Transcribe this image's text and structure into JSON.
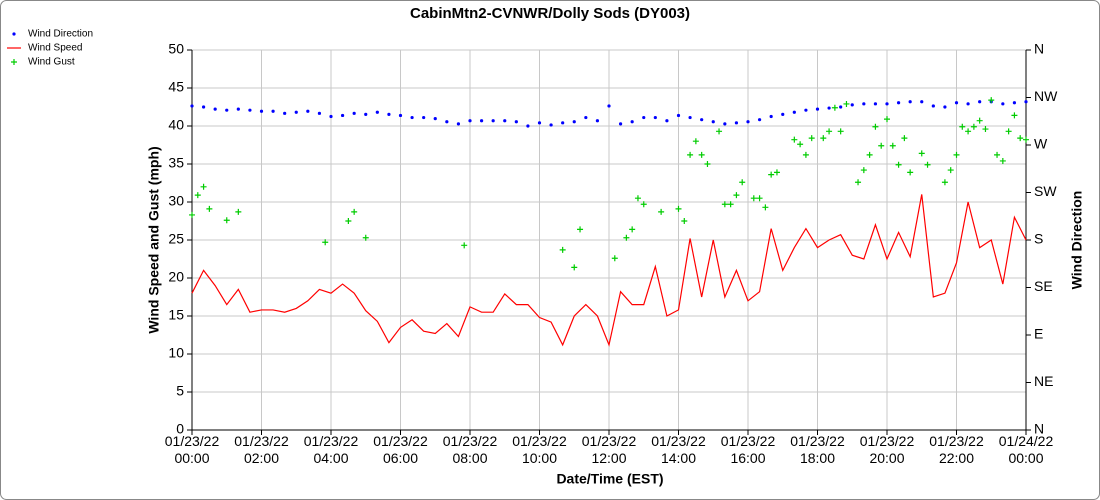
{
  "chart_data": {
    "type": "line",
    "title": "CabinMtn2-CVNWR/Dolly Sods (DY003)",
    "xlabel": "Date/Time (EST)",
    "ylabel": "Wind Speed and Gust (mph)",
    "y2label": "Wind Direction",
    "grid": true,
    "legend": "top-left",
    "xlim": [
      0,
      1440
    ],
    "xticks": [
      {
        "value": 0,
        "label": "01/23/22 00:00"
      },
      {
        "value": 120,
        "label": "01/23/22 02:00"
      },
      {
        "value": 240,
        "label": "01/23/22 04:00"
      },
      {
        "value": 360,
        "label": "01/23/22 06:00"
      },
      {
        "value": 480,
        "label": "01/23/22 08:00"
      },
      {
        "value": 600,
        "label": "01/23/22 10:00"
      },
      {
        "value": 720,
        "label": "01/23/22 12:00"
      },
      {
        "value": 840,
        "label": "01/23/22 14:00"
      },
      {
        "value": 960,
        "label": "01/23/22 16:00"
      },
      {
        "value": 1080,
        "label": "01/23/22 18:00"
      },
      {
        "value": 1200,
        "label": "01/23/22 20:00"
      },
      {
        "value": 1320,
        "label": "01/23/22 22:00"
      },
      {
        "value": 1440,
        "label": "01/24/22 00:00"
      }
    ],
    "ylim": [
      0,
      50
    ],
    "yticks": [
      0,
      5,
      10,
      15,
      20,
      25,
      30,
      35,
      40,
      45,
      50
    ],
    "y2lim": [
      0,
      360
    ],
    "y2ticks": [
      {
        "value": 0,
        "label": "N"
      },
      {
        "value": 45,
        "label": "NE"
      },
      {
        "value": 90,
        "label": "E"
      },
      {
        "value": 135,
        "label": "SE"
      },
      {
        "value": 180,
        "label": "S"
      },
      {
        "value": 225,
        "label": "SW"
      },
      {
        "value": 270,
        "label": "W"
      },
      {
        "value": 315,
        "label": "NW"
      },
      {
        "value": 360,
        "label": "N"
      }
    ],
    "series": [
      {
        "name": "Wind Direction",
        "color": "#0000ff",
        "style": "dot",
        "axis": "y2",
        "x": [
          0,
          20,
          40,
          60,
          80,
          100,
          120,
          140,
          160,
          180,
          200,
          220,
          240,
          260,
          280,
          300,
          320,
          340,
          360,
          380,
          400,
          420,
          440,
          460,
          480,
          500,
          520,
          540,
          560,
          580,
          600,
          620,
          640,
          660,
          680,
          700,
          720,
          740,
          760,
          780,
          800,
          820,
          840,
          860,
          880,
          900,
          920,
          940,
          960,
          980,
          1000,
          1020,
          1040,
          1060,
          1080,
          1100,
          1120,
          1140,
          1160,
          1180,
          1200,
          1220,
          1240,
          1260,
          1280,
          1300,
          1320,
          1340,
          1360,
          1380,
          1400,
          1420,
          1440
        ],
        "values": [
          307,
          306,
          304,
          303,
          304,
          303,
          302,
          302,
          300,
          301,
          302,
          300,
          297,
          298,
          300,
          299,
          301,
          299,
          298,
          296,
          296,
          295,
          292,
          290,
          293,
          293,
          293,
          293,
          292,
          288,
          291,
          289,
          291,
          292,
          296,
          293,
          307,
          290,
          292,
          296,
          296,
          293,
          298,
          296,
          294,
          292,
          290,
          291,
          292,
          294,
          297,
          299,
          301,
          303,
          304,
          305,
          306,
          308,
          309,
          309,
          309,
          310,
          311,
          311,
          307,
          306,
          310,
          309,
          311,
          311,
          309,
          310,
          311
        ]
      },
      {
        "name": "Wind Speed",
        "color": "#ff0000",
        "style": "line",
        "x": [
          0,
          20,
          40,
          60,
          80,
          100,
          120,
          140,
          160,
          180,
          200,
          220,
          240,
          260,
          280,
          300,
          320,
          340,
          360,
          380,
          400,
          420,
          440,
          460,
          480,
          500,
          520,
          540,
          560,
          580,
          600,
          620,
          640,
          660,
          680,
          700,
          720,
          740,
          760,
          780,
          800,
          820,
          840,
          860,
          880,
          900,
          920,
          940,
          960,
          980,
          1000,
          1020,
          1040,
          1060,
          1080,
          1100,
          1120,
          1140,
          1160,
          1180,
          1200,
          1220,
          1240,
          1260,
          1280,
          1300,
          1320,
          1340,
          1360,
          1380,
          1400,
          1420,
          1440
        ],
        "values": [
          18,
          21,
          19,
          16.5,
          18.5,
          15.5,
          15.8,
          15.8,
          15.5,
          16,
          17,
          18.5,
          18,
          19.2,
          18,
          15.7,
          14.3,
          11.5,
          13.5,
          14.5,
          13,
          12.7,
          14,
          12.3,
          16.2,
          15.5,
          15.5,
          17.9,
          16.5,
          16.5,
          14.8,
          14.2,
          11.2,
          15,
          16.5,
          15,
          11.2,
          18.2,
          16.5,
          16.5,
          21.5,
          15,
          15.8,
          25.2,
          17.5,
          25,
          17.5,
          21,
          17,
          18.2,
          26.5,
          21,
          24,
          26.5,
          24,
          25,
          25.7,
          23,
          22.5,
          27,
          22.5,
          26,
          22.8,
          31,
          17.5,
          18,
          22,
          30,
          24,
          25,
          19.2,
          28,
          25
        ]
      },
      {
        "name": "Wind Gust",
        "color": "#00cc00",
        "style": "plus",
        "x": [
          0,
          10,
          20,
          30,
          60,
          80,
          230,
          270,
          280,
          300,
          470,
          640,
          660,
          670,
          730,
          750,
          760,
          770,
          780,
          810,
          840,
          850,
          860,
          870,
          880,
          890,
          910,
          920,
          930,
          940,
          950,
          970,
          980,
          990,
          1000,
          1010,
          1040,
          1050,
          1060,
          1070,
          1090,
          1100,
          1110,
          1120,
          1130,
          1150,
          1160,
          1170,
          1180,
          1190,
          1200,
          1210,
          1220,
          1230,
          1240,
          1260,
          1270,
          1300,
          1310,
          1320,
          1330,
          1340,
          1350,
          1360,
          1370,
          1380,
          1390,
          1400,
          1410,
          1420,
          1430,
          1440
        ],
        "values": [
          28.3,
          30.9,
          32,
          29.1,
          27.6,
          28.7,
          24.7,
          27.5,
          28.7,
          25.3,
          24.3,
          23.7,
          21.4,
          26.4,
          22.6,
          25.3,
          26.4,
          30.5,
          29.7,
          28.7,
          29.1,
          27.5,
          36.2,
          38,
          36.2,
          35,
          39.3,
          29.7,
          29.7,
          30.9,
          32.6,
          30.5,
          30.5,
          29.3,
          33.6,
          33.9,
          38.2,
          37.6,
          36.2,
          38.4,
          38.4,
          39.3,
          42.4,
          39.3,
          42.9,
          32.6,
          34.2,
          36.2,
          39.9,
          37.4,
          40.9,
          37.4,
          34.9,
          38.4,
          33.9,
          36.4,
          34.9,
          32.6,
          34.2,
          36.2,
          39.9,
          39.3,
          39.9,
          40.7,
          39.6,
          43.4,
          36.2,
          35.4,
          39.3,
          41.4,
          38.4,
          38.2
        ]
      }
    ]
  }
}
